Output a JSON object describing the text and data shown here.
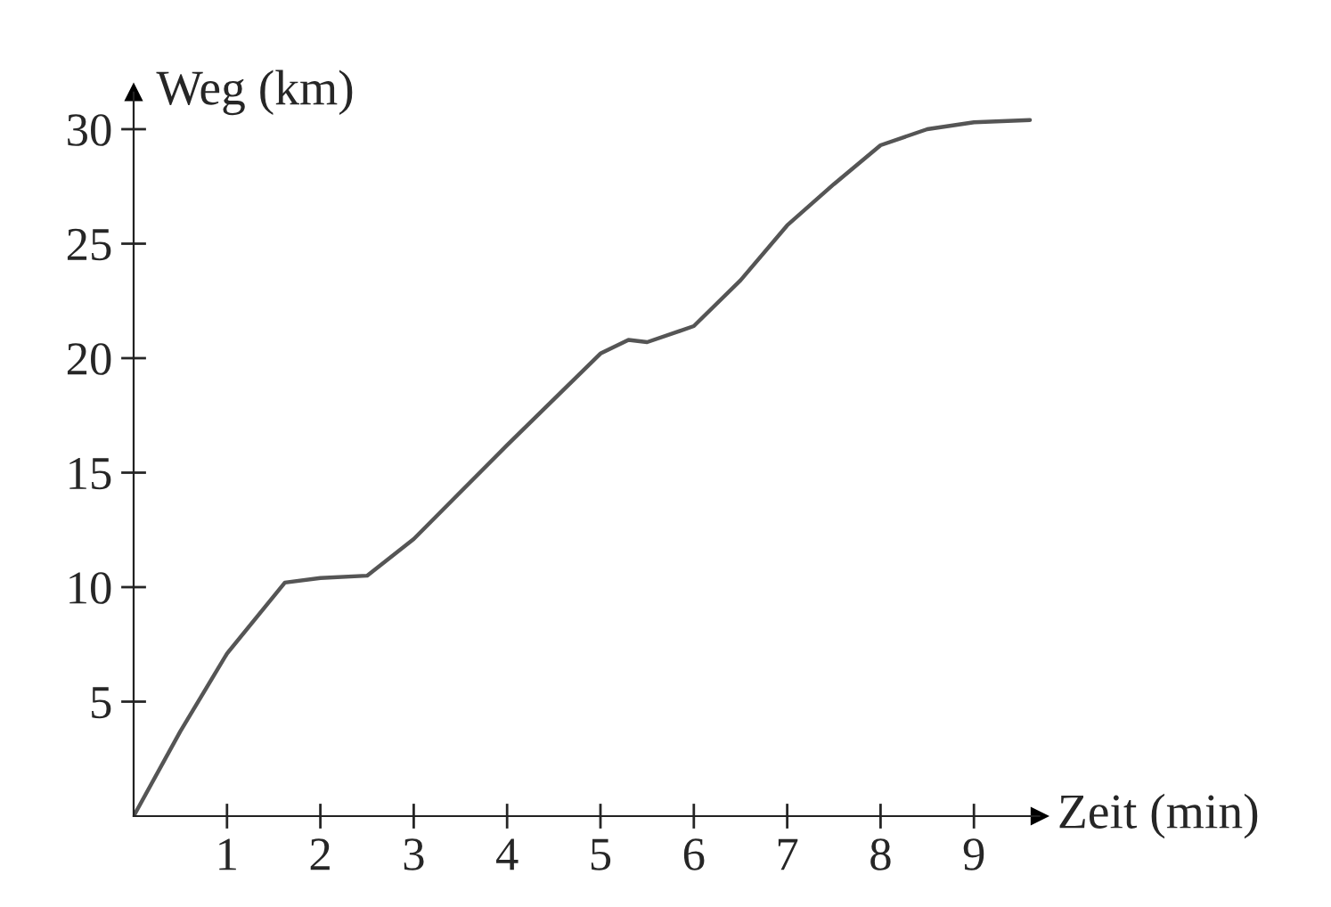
{
  "chart_data": {
    "type": "line",
    "xlabel": "Zeit (min)",
    "ylabel": "Weg (km)",
    "series": [
      {
        "color": "#555555",
        "x": [
          0,
          0.5,
          1,
          1.62,
          2,
          2.5,
          3,
          4,
          5,
          5.3,
          5.5,
          6,
          6.5,
          7,
          7.5,
          8,
          8.5,
          9,
          9.6
        ],
        "values": [
          0,
          3.7,
          7.1,
          10.2,
          10.4,
          10.5,
          12.1,
          16.2,
          20.2,
          20.8,
          20.7,
          21.4,
          23.4,
          25.8,
          27.6,
          29.3,
          30.0,
          30.3,
          30.4
        ]
      }
    ],
    "xlim": [
      0,
      9.7
    ],
    "ylim": [
      0,
      31.6
    ],
    "xticks": [
      1,
      2,
      3,
      4,
      5,
      6,
      7,
      8,
      9
    ],
    "yticks": [
      5,
      10,
      15,
      20,
      25,
      30
    ],
    "grid": false,
    "legend": false,
    "marker": "none",
    "line_style": "solid"
  }
}
